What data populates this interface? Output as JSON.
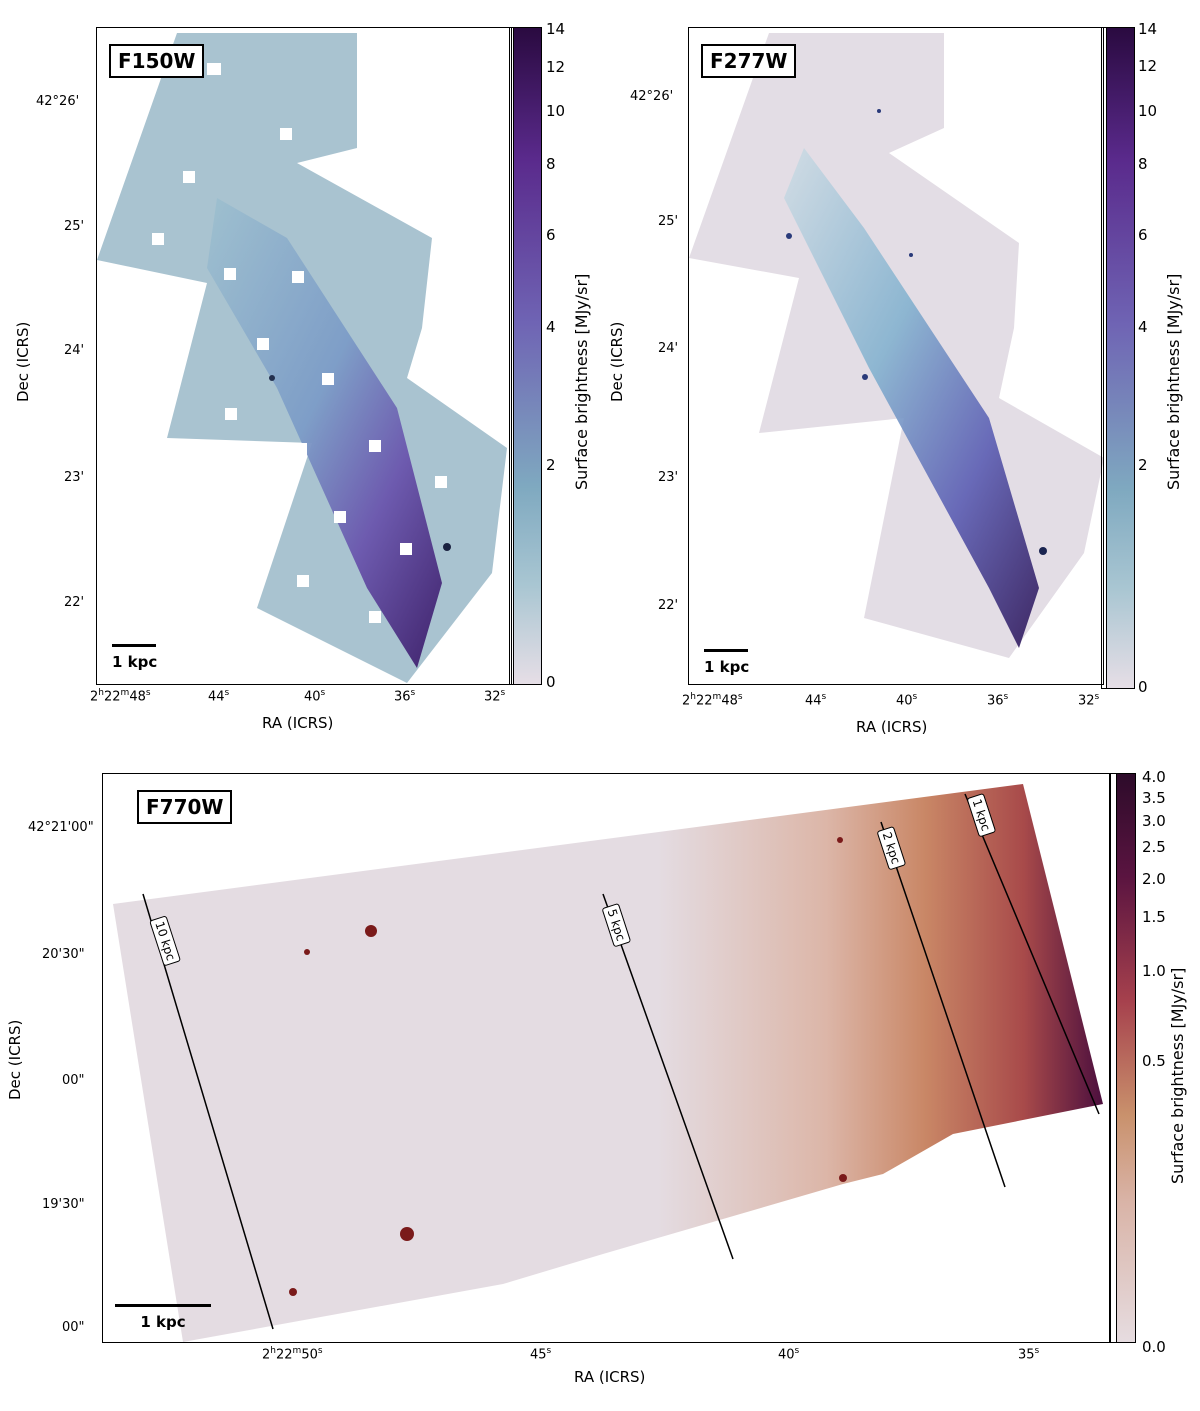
{
  "panels": {
    "f150w": {
      "filter": "F150W",
      "scalebar": "1 kpc",
      "xlabel": "RA (ICRS)",
      "ylabel": "Dec (ICRS)",
      "ra_ticks": {
        "first_main": "2",
        "first_h": "h",
        "first_m": "22",
        "first_mm": "m",
        "first_s": "48",
        "t44": "44",
        "t40": "40",
        "t36": "36",
        "t32": "32",
        "s": "s"
      },
      "dec_ticks": [
        "42°26'",
        "25'",
        "24'",
        "23'",
        "22'"
      ],
      "colorbar": {
        "label": "Surface brightness [MJy/sr]",
        "ticks": [
          "14",
          "12",
          "10",
          "8",
          "6",
          "4",
          "2",
          "0"
        ],
        "colors": [
          "#e6dee6",
          "#7fa9c0",
          "#6f64b4",
          "#3a0f58"
        ]
      }
    },
    "f277w": {
      "filter": "F277W",
      "scalebar": "1 kpc",
      "xlabel": "RA (ICRS)",
      "ylabel": "Dec (ICRS)",
      "ra_ticks": {
        "first_main": "2",
        "first_h": "h",
        "first_m": "22",
        "first_mm": "m",
        "first_s": "48",
        "t44": "44",
        "t40": "40",
        "t36": "36",
        "t32": "32",
        "s": "s"
      },
      "dec_ticks": [
        "42°26'",
        "25'",
        "24'",
        "23'",
        "22'"
      ],
      "colorbar": {
        "label": "Surface brightness [MJy/sr]",
        "ticks": [
          "14",
          "12",
          "10",
          "8",
          "6",
          "4",
          "2",
          "0"
        ],
        "colors": [
          "#e6dee6",
          "#7fa9c0",
          "#6f64b4",
          "#3a0f58"
        ]
      }
    },
    "f770w": {
      "filter": "F770W",
      "scalebar": "1 kpc",
      "xlabel": "RA (ICRS)",
      "ylabel": "Dec (ICRS)",
      "ra_ticks": {
        "first_main": "2",
        "first_h": "h",
        "first_m": "22",
        "first_mm": "m",
        "first_s": "50",
        "t45": "45",
        "t40": "40",
        "t35": "35",
        "s": "s"
      },
      "dec_ticks": [
        "42°21'00\"",
        "20'30\"",
        "00\"",
        "19'30\"",
        "00\""
      ],
      "contours": [
        "10 kpc",
        "5 kpc",
        "2 kpc",
        "1 kpc"
      ],
      "colorbar": {
        "label": "Surface brightness [MJy/sr]",
        "ticks": [
          "4.0",
          "3.5",
          "3.0",
          "2.5",
          "2.0",
          "1.5",
          "1.0",
          "0.5",
          "0.0"
        ],
        "colors": [
          "#e6dce0",
          "#c9916c",
          "#a6414d",
          "#5a1440",
          "#2d0b2a"
        ]
      }
    }
  }
}
